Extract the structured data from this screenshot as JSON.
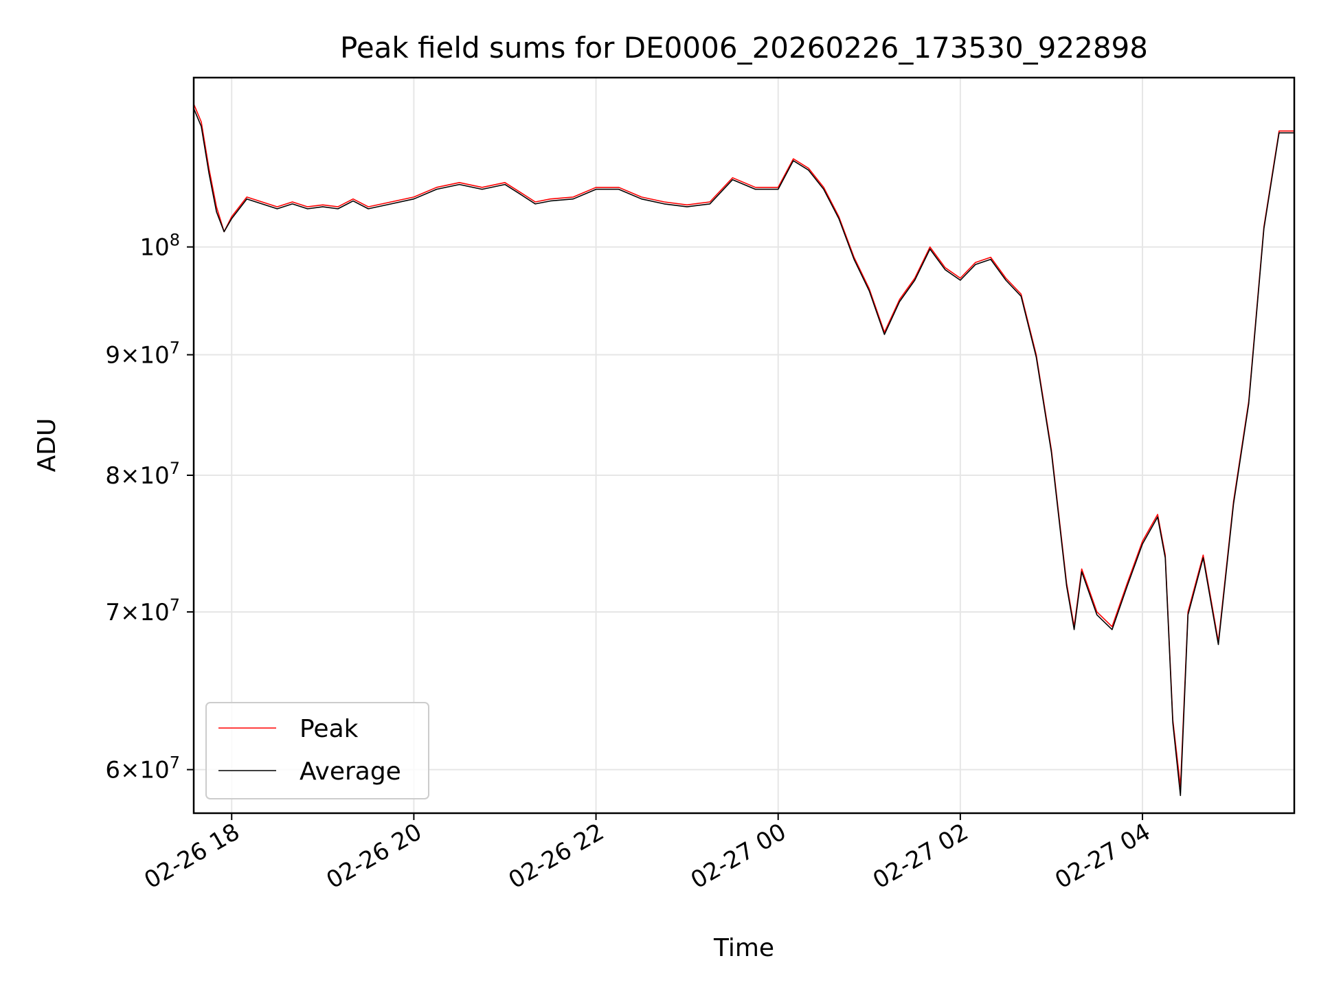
{
  "chart_data": {
    "type": "line",
    "title": "Peak field sums for DE0006_20260226_173530_922898",
    "xlabel": "Time",
    "ylabel": "ADU",
    "yscale": "log",
    "ylim": [
      57500000,
      118000000
    ],
    "xlim": [
      "2026-02-26 17:35",
      "2026-02-27 05:40"
    ],
    "grid": true,
    "legend_position": "lower-left",
    "x_ticks": [
      {
        "value": "2026-02-26 18:00",
        "label": "02-26 18"
      },
      {
        "value": "2026-02-26 20:00",
        "label": "02-26 20"
      },
      {
        "value": "2026-02-26 22:00",
        "label": "02-26 22"
      },
      {
        "value": "2026-02-27 00:00",
        "label": "02-27 00"
      },
      {
        "value": "2026-02-27 02:00",
        "label": "02-27 02"
      },
      {
        "value": "2026-02-27 04:00",
        "label": "02-27 04"
      }
    ],
    "y_ticks": [
      {
        "value": 60000000,
        "mantissa": "6",
        "exponent": "7"
      },
      {
        "value": 70000000,
        "mantissa": "7",
        "exponent": "7"
      },
      {
        "value": 80000000,
        "mantissa": "8",
        "exponent": "7"
      },
      {
        "value": 90000000,
        "mantissa": "9",
        "exponent": "7"
      },
      {
        "value": 100000000,
        "mantissa": "",
        "exponent": "8"
      }
    ],
    "series": [
      {
        "name": "Peak",
        "color": "#ff0000",
        "x": [
          "2026-02-26 17:35",
          "2026-02-26 17:40",
          "2026-02-26 17:45",
          "2026-02-26 17:50",
          "2026-02-26 17:55",
          "2026-02-26 18:00",
          "2026-02-26 18:10",
          "2026-02-26 18:20",
          "2026-02-26 18:30",
          "2026-02-26 18:40",
          "2026-02-26 18:50",
          "2026-02-26 19:00",
          "2026-02-26 19:10",
          "2026-02-26 19:20",
          "2026-02-26 19:30",
          "2026-02-26 19:45",
          "2026-02-26 20:00",
          "2026-02-26 20:15",
          "2026-02-26 20:30",
          "2026-02-26 20:45",
          "2026-02-26 21:00",
          "2026-02-26 21:10",
          "2026-02-26 21:20",
          "2026-02-26 21:30",
          "2026-02-26 21:45",
          "2026-02-26 22:00",
          "2026-02-26 22:15",
          "2026-02-26 22:30",
          "2026-02-26 22:45",
          "2026-02-26 23:00",
          "2026-02-26 23:15",
          "2026-02-26 23:30",
          "2026-02-26 23:45",
          "2026-02-27 00:00",
          "2026-02-27 00:10",
          "2026-02-27 00:20",
          "2026-02-27 00:30",
          "2026-02-27 00:40",
          "2026-02-27 00:50",
          "2026-02-27 01:00",
          "2026-02-27 01:10",
          "2026-02-27 01:20",
          "2026-02-27 01:30",
          "2026-02-27 01:40",
          "2026-02-27 01:50",
          "2026-02-27 02:00",
          "2026-02-27 02:10",
          "2026-02-27 02:20",
          "2026-02-27 02:30",
          "2026-02-27 02:40",
          "2026-02-27 02:50",
          "2026-02-27 03:00",
          "2026-02-27 03:10",
          "2026-02-27 03:15",
          "2026-02-27 03:20",
          "2026-02-27 03:30",
          "2026-02-27 03:40",
          "2026-02-27 03:50",
          "2026-02-27 04:00",
          "2026-02-27 04:10",
          "2026-02-27 04:15",
          "2026-02-27 04:20",
          "2026-02-27 04:25",
          "2026-02-27 04:30",
          "2026-02-27 04:40",
          "2026-02-27 04:50",
          "2026-02-27 05:00",
          "2026-02-27 05:10",
          "2026-02-27 05:20",
          "2026-02-27 05:30",
          "2026-02-27 05:40"
        ],
        "values": [
          115000000,
          113000000,
          108000000,
          104000000,
          101500000,
          103000000,
          105000000,
          104500000,
          104000000,
          104500000,
          104000000,
          104200000,
          104000000,
          104800000,
          104000000,
          104500000,
          105000000,
          106000000,
          106500000,
          106000000,
          106500000,
          105500000,
          104500000,
          104800000,
          105000000,
          106000000,
          106000000,
          105000000,
          104500000,
          104200000,
          104500000,
          107000000,
          106000000,
          106000000,
          109000000,
          108000000,
          106000000,
          103000000,
          99000000,
          96000000,
          92000000,
          95000000,
          97000000,
          100000000,
          98000000,
          97000000,
          98500000,
          99000000,
          97000000,
          95500000,
          90000000,
          82000000,
          72000000,
          69000000,
          73000000,
          70000000,
          69000000,
          72000000,
          75000000,
          77000000,
          74000000,
          63000000,
          59000000,
          70000000,
          74000000,
          68000000,
          78000000,
          86000000,
          102000000,
          112000000,
          112000000
        ]
      },
      {
        "name": "Average",
        "color": "#000000",
        "x": [
          "2026-02-26 17:35",
          "2026-02-26 17:40",
          "2026-02-26 17:45",
          "2026-02-26 17:50",
          "2026-02-26 17:55",
          "2026-02-26 18:00",
          "2026-02-26 18:10",
          "2026-02-26 18:20",
          "2026-02-26 18:30",
          "2026-02-26 18:40",
          "2026-02-26 18:50",
          "2026-02-26 19:00",
          "2026-02-26 19:10",
          "2026-02-26 19:20",
          "2026-02-26 19:30",
          "2026-02-26 19:45",
          "2026-02-26 20:00",
          "2026-02-26 20:15",
          "2026-02-26 20:30",
          "2026-02-26 20:45",
          "2026-02-26 21:00",
          "2026-02-26 21:10",
          "2026-02-26 21:20",
          "2026-02-26 21:30",
          "2026-02-26 21:45",
          "2026-02-26 22:00",
          "2026-02-26 22:15",
          "2026-02-26 22:30",
          "2026-02-26 22:45",
          "2026-02-26 23:00",
          "2026-02-26 23:15",
          "2026-02-26 23:30",
          "2026-02-26 23:45",
          "2026-02-27 00:00",
          "2026-02-27 00:10",
          "2026-02-27 00:20",
          "2026-02-27 00:30",
          "2026-02-27 00:40",
          "2026-02-27 00:50",
          "2026-02-27 01:00",
          "2026-02-27 01:10",
          "2026-02-27 01:20",
          "2026-02-27 01:30",
          "2026-02-27 01:40",
          "2026-02-27 01:50",
          "2026-02-27 02:00",
          "2026-02-27 02:10",
          "2026-02-27 02:20",
          "2026-02-27 02:30",
          "2026-02-27 02:40",
          "2026-02-27 02:50",
          "2026-02-27 03:00",
          "2026-02-27 03:10",
          "2026-02-27 03:15",
          "2026-02-27 03:20",
          "2026-02-27 03:30",
          "2026-02-27 03:40",
          "2026-02-27 03:50",
          "2026-02-27 04:00",
          "2026-02-27 04:10",
          "2026-02-27 04:15",
          "2026-02-27 04:20",
          "2026-02-27 04:25",
          "2026-02-27 04:30",
          "2026-02-27 04:40",
          "2026-02-27 04:50",
          "2026-02-27 05:00",
          "2026-02-27 05:10",
          "2026-02-27 05:20",
          "2026-02-27 05:30",
          "2026-02-27 05:40"
        ],
        "values": [
          114500000,
          112500000,
          107500000,
          103500000,
          101500000,
          102800000,
          104800000,
          104300000,
          103800000,
          104300000,
          103800000,
          104000000,
          103800000,
          104600000,
          103800000,
          104300000,
          104800000,
          105800000,
          106300000,
          105800000,
          106300000,
          105300000,
          104300000,
          104600000,
          104800000,
          105800000,
          105800000,
          104800000,
          104300000,
          104000000,
          104300000,
          106800000,
          105800000,
          105800000,
          108800000,
          107800000,
          105800000,
          102800000,
          98800000,
          95800000,
          91800000,
          94800000,
          96800000,
          99800000,
          97800000,
          96800000,
          98300000,
          98800000,
          96800000,
          95300000,
          89800000,
          81800000,
          71800000,
          68800000,
          72800000,
          69800000,
          68800000,
          71800000,
          74800000,
          76800000,
          73800000,
          62800000,
          58500000,
          69800000,
          73800000,
          67800000,
          77800000,
          85800000,
          101800000,
          111800000,
          111800000
        ]
      }
    ]
  }
}
